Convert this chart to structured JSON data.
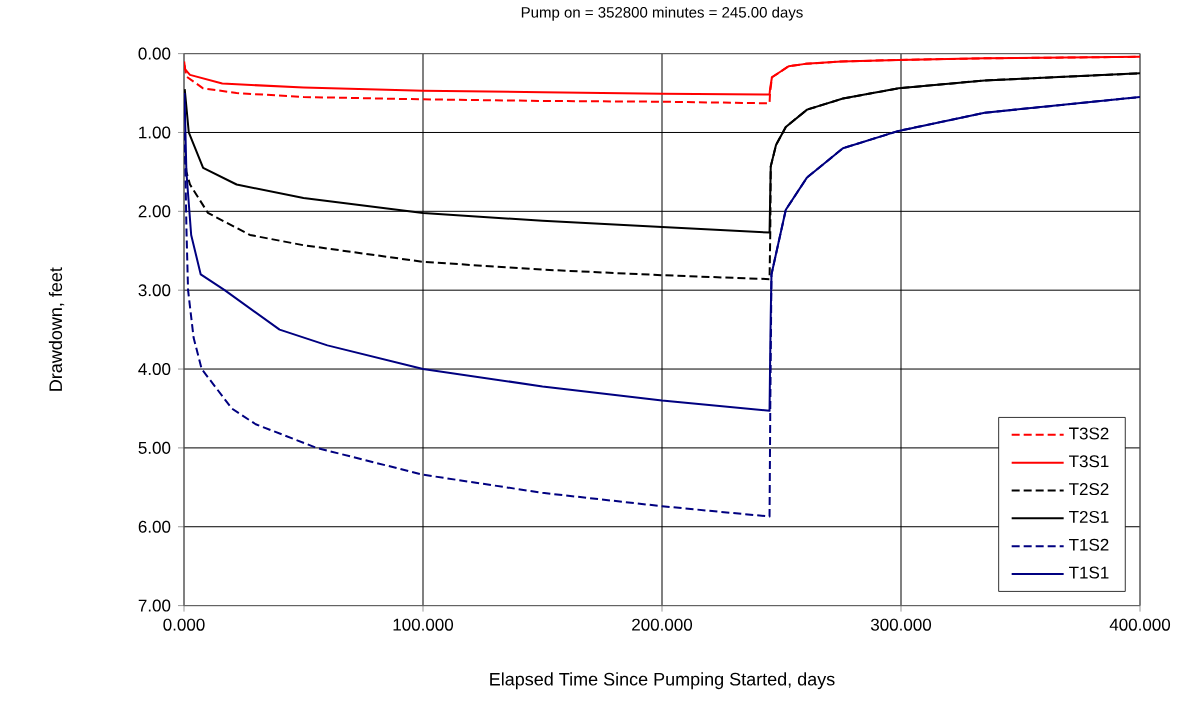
{
  "chart_data": {
    "type": "line",
    "title": "Pump on = 352800 minutes = 245.00 days",
    "xlabel": "Elapsed Time Since Pumping Started, days",
    "ylabel": "Drawdown, feet",
    "xlim": [
      0,
      400
    ],
    "xticks": [
      {
        "value": 0,
        "label": "0.000"
      },
      {
        "value": 100,
        "label": "100.000"
      },
      {
        "value": 200,
        "label": "200.000"
      },
      {
        "value": 300,
        "label": "300.000"
      },
      {
        "value": 400,
        "label": "400.000"
      }
    ],
    "ylim": [
      7,
      0
    ],
    "yticks": [
      {
        "value": 0,
        "label": "0.00"
      },
      {
        "value": 1,
        "label": "1.00"
      },
      {
        "value": 2,
        "label": "2.00"
      },
      {
        "value": 3,
        "label": "3.00"
      },
      {
        "value": 4,
        "label": "4.00"
      },
      {
        "value": 5,
        "label": "5.00"
      },
      {
        "value": 6,
        "label": "6.00"
      },
      {
        "value": 7,
        "label": "7.00"
      }
    ],
    "grid": true,
    "legend": "bottom right",
    "marker": "none",
    "series": [
      {
        "name": "T3S2",
        "color": "#ff0000",
        "line_style": "dashed",
        "x": [
          0.2,
          1,
          8,
          22,
          50,
          100,
          150,
          200,
          245,
          245.2,
          246,
          253,
          260,
          275,
          299,
          335,
          400
        ],
        "values": [
          0.15,
          0.29,
          0.44,
          0.5,
          0.55,
          0.58,
          0.6,
          0.61,
          0.63,
          0.5,
          0.3,
          0.16,
          0.13,
          0.1,
          0.08,
          0.06,
          0.04
        ]
      },
      {
        "name": "T3S1",
        "color": "#ff0000",
        "line_style": "solid",
        "x": [
          0.05,
          0.5,
          2.5,
          16,
          50,
          100,
          150,
          200,
          245,
          245.2,
          246,
          253,
          260,
          275,
          299,
          335,
          400
        ],
        "values": [
          0.1,
          0.2,
          0.27,
          0.38,
          0.43,
          0.47,
          0.49,
          0.51,
          0.52,
          0.45,
          0.3,
          0.16,
          0.13,
          0.1,
          0.08,
          0.06,
          0.04
        ]
      },
      {
        "name": "T2S2",
        "color": "#000000",
        "line_style": "dashed",
        "x": [
          0.5,
          1,
          2.5,
          10,
          27.6,
          50,
          100,
          150,
          200,
          245,
          245.3,
          245.5,
          247.7,
          251.8,
          260.7,
          275.7,
          299,
          335,
          400
        ],
        "values": [
          1.3,
          1.5,
          1.66,
          2.02,
          2.3,
          2.43,
          2.64,
          2.74,
          2.81,
          2.86,
          2.27,
          1.43,
          1.16,
          0.93,
          0.71,
          0.57,
          0.44,
          0.34,
          0.25
        ]
      },
      {
        "name": "T2S1",
        "color": "#000000",
        "line_style": "solid",
        "x": [
          0.3,
          2,
          8,
          22,
          50,
          100,
          150,
          200,
          245,
          245.5,
          247.7,
          251.8,
          260.7,
          275.7,
          299,
          335,
          400
        ],
        "values": [
          0.45,
          1.0,
          1.45,
          1.66,
          1.83,
          2.02,
          2.12,
          2.2,
          2.27,
          1.43,
          1.16,
          0.93,
          0.71,
          0.57,
          0.44,
          0.34,
          0.25
        ]
      },
      {
        "name": "T1S2",
        "color": "#000080",
        "line_style": "dashed",
        "x": [
          0.3,
          1,
          1.7,
          4,
          7.4,
          20,
          30,
          55.5,
          100,
          150,
          200,
          245,
          245.3,
          245.8,
          251.8,
          260.7,
          275.7,
          299,
          335,
          400
        ],
        "values": [
          1.0,
          2.2,
          3.0,
          3.6,
          4.0,
          4.5,
          4.7,
          5.0,
          5.34,
          5.57,
          5.74,
          5.87,
          4.5,
          2.8,
          1.98,
          1.57,
          1.2,
          0.98,
          0.75,
          0.55
        ]
      },
      {
        "name": "T1S1",
        "color": "#000080",
        "line_style": "solid",
        "x": [
          0.2,
          1,
          3,
          7,
          17,
          40,
          60,
          100,
          150,
          200,
          245,
          245.2,
          245.5,
          245.8,
          251.8,
          260.7,
          275.7,
          299,
          335,
          400
        ],
        "values": [
          0.5,
          1.5,
          2.3,
          2.8,
          3.0,
          3.5,
          3.7,
          4.0,
          4.22,
          4.4,
          4.53,
          4.0,
          3.3,
          2.8,
          1.98,
          1.57,
          1.2,
          0.98,
          0.75,
          0.55
        ]
      }
    ]
  }
}
